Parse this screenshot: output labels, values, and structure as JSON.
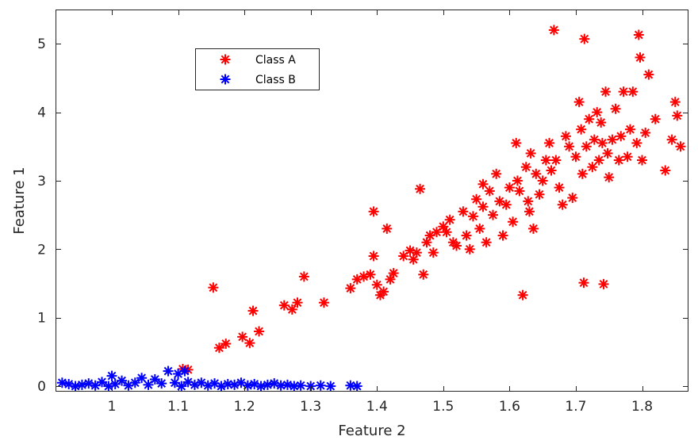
{
  "chart_data": {
    "type": "scatter",
    "xlabel": "Feature 2",
    "ylabel": "Feature 1",
    "xlim": [
      0.915,
      1.87
    ],
    "ylim": [
      -0.08,
      5.5
    ],
    "xticks": [
      1,
      1.1,
      1.2,
      1.3,
      1.4,
      1.5,
      1.6,
      1.7,
      1.8
    ],
    "xtick_labels": [
      "1",
      "1.1",
      "1.2",
      "1.3",
      "1.4",
      "1.5",
      "1.6",
      "1.7",
      "1.8"
    ],
    "yticks": [
      0,
      1,
      2,
      3,
      4,
      5
    ],
    "ytick_labels": [
      "0",
      "1",
      "2",
      "3",
      "4",
      "5"
    ],
    "grid": false,
    "legend_position": "top-left",
    "marker": "asterisk",
    "series": [
      {
        "name": "Class A",
        "color": "#ff0000",
        "points": [
          [
            1.107,
            0.25
          ],
          [
            1.115,
            0.24
          ],
          [
            1.153,
            1.44
          ],
          [
            1.162,
            0.56
          ],
          [
            1.172,
            0.62
          ],
          [
            1.197,
            0.72
          ],
          [
            1.208,
            0.63
          ],
          [
            1.213,
            1.1
          ],
          [
            1.222,
            0.8
          ],
          [
            1.26,
            1.18
          ],
          [
            1.272,
            1.12
          ],
          [
            1.28,
            1.22
          ],
          [
            1.29,
            1.6
          ],
          [
            1.32,
            1.22
          ],
          [
            1.36,
            1.43
          ],
          [
            1.37,
            1.56
          ],
          [
            1.38,
            1.6
          ],
          [
            1.39,
            1.63
          ],
          [
            1.395,
            1.9
          ],
          [
            1.395,
            2.55
          ],
          [
            1.4,
            1.48
          ],
          [
            1.405,
            1.33
          ],
          [
            1.41,
            1.38
          ],
          [
            1.415,
            2.3
          ],
          [
            1.42,
            1.56
          ],
          [
            1.425,
            1.65
          ],
          [
            1.44,
            1.9
          ],
          [
            1.45,
            1.98
          ],
          [
            1.455,
            1.85
          ],
          [
            1.46,
            1.95
          ],
          [
            1.465,
            2.88
          ],
          [
            1.47,
            1.63
          ],
          [
            1.475,
            2.1
          ],
          [
            1.48,
            2.2
          ],
          [
            1.485,
            1.95
          ],
          [
            1.49,
            2.25
          ],
          [
            1.5,
            2.33
          ],
          [
            1.505,
            2.25
          ],
          [
            1.51,
            2.43
          ],
          [
            1.515,
            2.1
          ],
          [
            1.52,
            2.05
          ],
          [
            1.53,
            2.55
          ],
          [
            1.535,
            2.2
          ],
          [
            1.54,
            2.0
          ],
          [
            1.545,
            2.48
          ],
          [
            1.55,
            2.73
          ],
          [
            1.555,
            2.3
          ],
          [
            1.56,
            2.62
          ],
          [
            1.56,
            2.95
          ],
          [
            1.565,
            2.1
          ],
          [
            1.57,
            2.85
          ],
          [
            1.575,
            2.5
          ],
          [
            1.58,
            3.1
          ],
          [
            1.585,
            2.7
          ],
          [
            1.59,
            2.2
          ],
          [
            1.595,
            2.65
          ],
          [
            1.6,
            2.9
          ],
          [
            1.605,
            2.4
          ],
          [
            1.61,
            3.55
          ],
          [
            1.612,
            3.0
          ],
          [
            1.615,
            2.85
          ],
          [
            1.62,
            1.33
          ],
          [
            1.625,
            3.2
          ],
          [
            1.628,
            2.7
          ],
          [
            1.63,
            2.55
          ],
          [
            1.632,
            3.4
          ],
          [
            1.636,
            2.3
          ],
          [
            1.64,
            3.1
          ],
          [
            1.645,
            2.8
          ],
          [
            1.65,
            3.0
          ],
          [
            1.655,
            3.3
          ],
          [
            1.66,
            3.55
          ],
          [
            1.663,
            3.15
          ],
          [
            1.667,
            5.2
          ],
          [
            1.67,
            3.3
          ],
          [
            1.675,
            2.9
          ],
          [
            1.68,
            2.65
          ],
          [
            1.685,
            3.65
          ],
          [
            1.69,
            3.5
          ],
          [
            1.695,
            2.75
          ],
          [
            1.7,
            3.35
          ],
          [
            1.705,
            4.15
          ],
          [
            1.708,
            3.75
          ],
          [
            1.71,
            3.1
          ],
          [
            1.712,
            1.51
          ],
          [
            1.713,
            5.07
          ],
          [
            1.716,
            3.5
          ],
          [
            1.72,
            3.9
          ],
          [
            1.725,
            3.2
          ],
          [
            1.728,
            3.6
          ],
          [
            1.732,
            4.0
          ],
          [
            1.735,
            3.3
          ],
          [
            1.738,
            3.85
          ],
          [
            1.74,
            3.55
          ],
          [
            1.742,
            1.49
          ],
          [
            1.745,
            4.3
          ],
          [
            1.748,
            3.4
          ],
          [
            1.75,
            3.05
          ],
          [
            1.755,
            3.6
          ],
          [
            1.76,
            4.05
          ],
          [
            1.765,
            3.3
          ],
          [
            1.768,
            3.65
          ],
          [
            1.772,
            4.3
          ],
          [
            1.778,
            3.35
          ],
          [
            1.782,
            3.75
          ],
          [
            1.786,
            4.3
          ],
          [
            1.792,
            3.55
          ],
          [
            1.795,
            5.13
          ],
          [
            1.797,
            4.8
          ],
          [
            1.8,
            3.3
          ],
          [
            1.805,
            3.7
          ],
          [
            1.81,
            4.55
          ],
          [
            1.82,
            3.9
          ],
          [
            1.835,
            3.15
          ],
          [
            1.845,
            3.6
          ],
          [
            1.85,
            4.15
          ],
          [
            1.853,
            3.95
          ],
          [
            1.858,
            3.5
          ]
        ]
      },
      {
        "name": "Class B",
        "color": "#0000ff",
        "points": [
          [
            0.925,
            0.05
          ],
          [
            0.935,
            0.03
          ],
          [
            0.945,
            0.0
          ],
          [
            0.955,
            0.02
          ],
          [
            0.965,
            0.04
          ],
          [
            0.975,
            0.01
          ],
          [
            0.985,
            0.06
          ],
          [
            0.995,
            0.0
          ],
          [
            1.0,
            0.15
          ],
          [
            1.005,
            0.03
          ],
          [
            1.015,
            0.08
          ],
          [
            1.025,
            0.01
          ],
          [
            1.035,
            0.05
          ],
          [
            1.045,
            0.12
          ],
          [
            1.055,
            0.02
          ],
          [
            1.065,
            0.1
          ],
          [
            1.075,
            0.04
          ],
          [
            1.085,
            0.22
          ],
          [
            1.095,
            0.05
          ],
          [
            1.1,
            0.18
          ],
          [
            1.105,
            0.0
          ],
          [
            1.11,
            0.22
          ],
          [
            1.115,
            0.06
          ],
          [
            1.125,
            0.02
          ],
          [
            1.135,
            0.05
          ],
          [
            1.145,
            0.01
          ],
          [
            1.155,
            0.04
          ],
          [
            1.165,
            0.0
          ],
          [
            1.175,
            0.03
          ],
          [
            1.185,
            0.02
          ],
          [
            1.195,
            0.05
          ],
          [
            1.205,
            0.01
          ],
          [
            1.215,
            0.03
          ],
          [
            1.225,
            0.0
          ],
          [
            1.235,
            0.02
          ],
          [
            1.245,
            0.04
          ],
          [
            1.255,
            0.01
          ],
          [
            1.265,
            0.02
          ],
          [
            1.275,
            0.0
          ],
          [
            1.285,
            0.01
          ],
          [
            1.3,
            0.0
          ],
          [
            1.315,
            0.01
          ],
          [
            1.33,
            0.0
          ],
          [
            1.36,
            0.01
          ],
          [
            1.37,
            0.0
          ]
        ]
      }
    ]
  }
}
